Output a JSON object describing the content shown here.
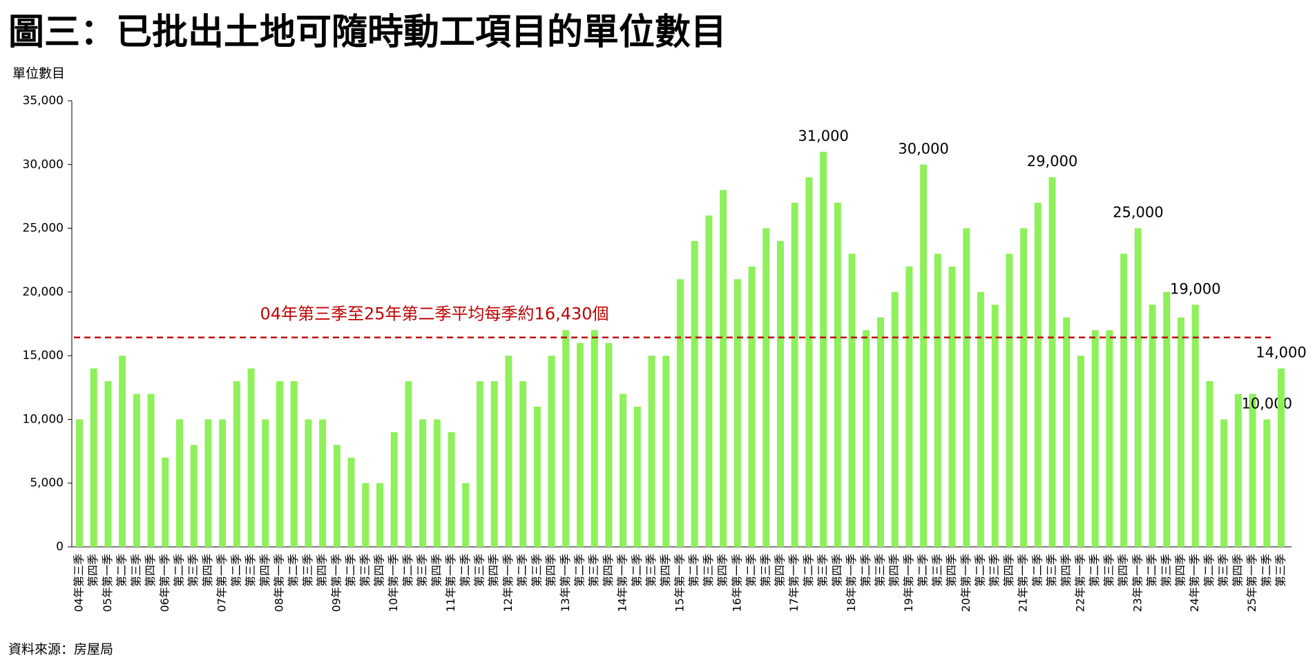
{
  "chart_data": {
    "type": "bar",
    "title": "圖三：已批出土地可隨時動工項目的單位數目",
    "y_label": "單位數目",
    "source": "資料來源：房屋局",
    "color": "#8ef05a",
    "categories": [
      "04年第三季",
      "第四季",
      "05年第一季",
      "第二季",
      "第三季",
      "第四季",
      "06年第一季",
      "第二季",
      "第三季",
      "第四季",
      "07年第一季",
      "第二季",
      "第三季",
      "第四季",
      "08年第一季",
      "第二季",
      "第三季",
      "第四季",
      "09年第一季",
      "第二季",
      "第三季",
      "第四季",
      "10年第一季",
      "第二季",
      "第三季",
      "第四季",
      "11年第一季",
      "第二季",
      "第三季",
      "第四季",
      "12年第一季",
      "第二季",
      "第三季",
      "第四季",
      "13年第一季",
      "第二季",
      "第三季",
      "第四季",
      "14年第一季",
      "第二季",
      "第三季",
      "第四季",
      "15年第一季",
      "第二季",
      "第三季",
      "第四季",
      "16年第一季",
      "第二季",
      "第三季",
      "第四季",
      "17年第一季",
      "第二季",
      "第三季",
      "第四季",
      "18年第一季",
      "第二季",
      "第三季",
      "第四季",
      "19年第一季",
      "第二季",
      "第三季",
      "第四季",
      "20年第一季",
      "第二季",
      "第三季",
      "第四季",
      "21年第一季",
      "第二季",
      "第三季",
      "第四季",
      "22年第一季",
      "第二季",
      "第三季",
      "第四季",
      "23年第一季",
      "第二季",
      "第三季",
      "第四季",
      "24年第一季",
      "第二季",
      "第三季",
      "第四季",
      "25年第一季",
      "第二季",
      "第三季"
    ],
    "values": [
      10000,
      14000,
      13000,
      15000,
      12000,
      12000,
      7000,
      10000,
      8000,
      10000,
      10000,
      13000,
      14000,
      10000,
      13000,
      13000,
      10000,
      10000,
      8000,
      7000,
      5000,
      5000,
      9000,
      13000,
      10000,
      10000,
      9000,
      5000,
      13000,
      13000,
      15000,
      13000,
      11000,
      15000,
      17000,
      16000,
      17000,
      16000,
      12000,
      11000,
      15000,
      15000,
      21000,
      24000,
      26000,
      28000,
      21000,
      22000,
      25000,
      24000,
      27000,
      29000,
      31000,
      27000,
      23000,
      17000,
      18000,
      20000,
      22000,
      30000,
      23000,
      22000,
      25000,
      20000,
      19000,
      23000,
      25000,
      27000,
      29000,
      18000,
      15000,
      17000,
      17000,
      23000,
      25000,
      19000,
      20000,
      18000,
      19000,
      13000,
      10000,
      12000,
      12000,
      10000,
      14000
    ],
    "value_labels": [
      null,
      null,
      null,
      null,
      null,
      null,
      null,
      null,
      null,
      null,
      null,
      null,
      null,
      null,
      null,
      null,
      null,
      null,
      null,
      null,
      null,
      null,
      null,
      null,
      null,
      null,
      null,
      null,
      null,
      null,
      null,
      null,
      null,
      null,
      null,
      null,
      null,
      null,
      null,
      null,
      null,
      null,
      null,
      null,
      null,
      null,
      null,
      null,
      null,
      null,
      null,
      null,
      "31,000",
      null,
      null,
      null,
      null,
      null,
      null,
      "30,000",
      null,
      null,
      null,
      null,
      null,
      null,
      null,
      null,
      "29,000",
      null,
      null,
      null,
      null,
      null,
      "25,000",
      null,
      null,
      null,
      "19,000",
      null,
      null,
      null,
      null,
      "10,000",
      "14,000"
    ],
    "average": 16430,
    "average_label": "04年第三季至25年第二季平均每季約16,430個",
    "ylim": [
      0,
      35000
    ],
    "yticks": [
      0,
      {
        "value": 5000,
        "label": "5,000"
      },
      {
        "value": 10000,
        "label": "10,000"
      },
      {
        "value": 15000,
        "label": "15,000"
      },
      {
        "value": 20000,
        "label": "20,000"
      },
      {
        "value": 25000,
        "label": "25,000"
      },
      {
        "value": 30000,
        "label": "30,000"
      },
      {
        "value": 35000,
        "label": "35,000"
      }
    ],
    "grid": false
  }
}
